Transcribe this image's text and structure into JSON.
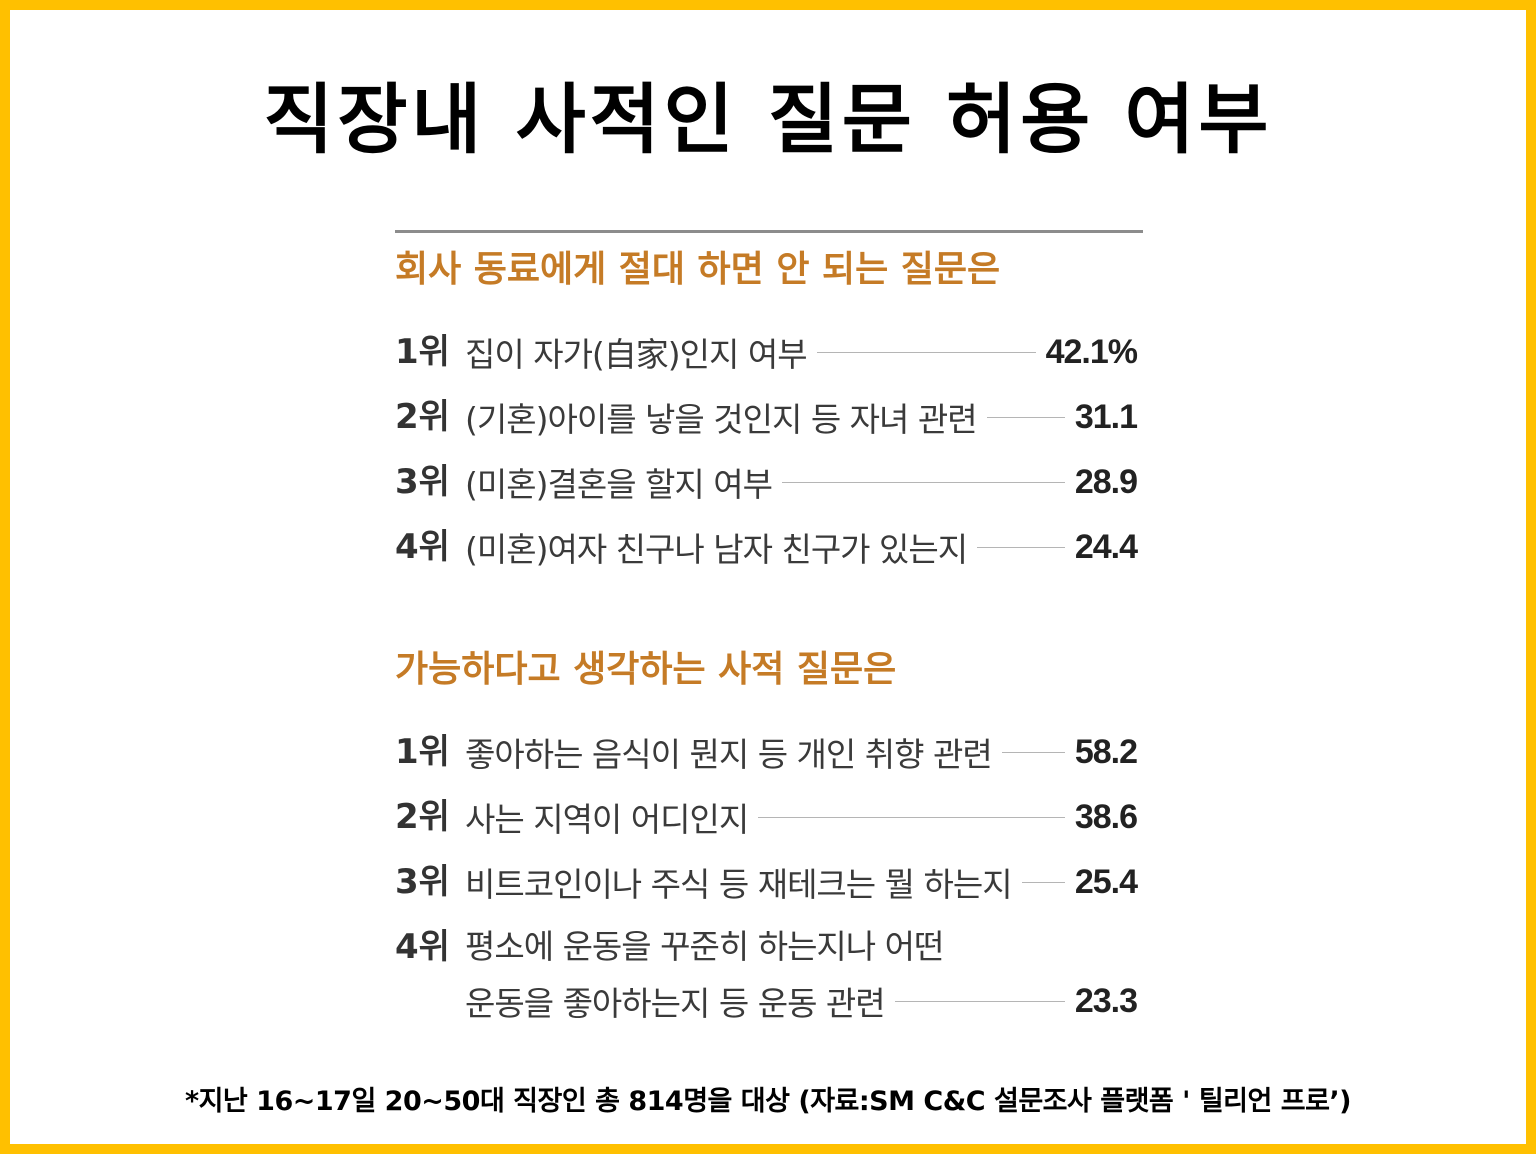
{
  "title": "직장내 사적인 질문 허용 여부",
  "section1": {
    "heading": "회사 동료에게 절대 하면 안 되는 질문은",
    "items": [
      {
        "rank": "1위",
        "label": "집이 자가(自家)인지 여부",
        "value": "42.1%"
      },
      {
        "rank": "2위",
        "label": "(기혼)아이를 낳을 것인지 등 자녀 관련",
        "value": "31.1"
      },
      {
        "rank": "3위",
        "label": "(미혼)결혼을 할지 여부",
        "value": "28.9"
      },
      {
        "rank": "4위",
        "label": "(미혼)여자 친구나 남자 친구가 있는지",
        "value": "24.4"
      }
    ]
  },
  "section2": {
    "heading": "가능하다고 생각하는 사적 질문은",
    "items": [
      {
        "rank": "1위",
        "label": "좋아하는 음식이 뭔지 등 개인 취향 관련",
        "value": "58.2"
      },
      {
        "rank": "2위",
        "label": "사는 지역이 어디인지",
        "value": "38.6"
      },
      {
        "rank": "3위",
        "label": "비트코인이나 주식 등 재테크는 뭘 하는지",
        "value": "25.4"
      },
      {
        "rank": "4위",
        "label_line1": "평소에 운동을 꾸준히 하는지나 어떤",
        "label_line2": "운동을 좋아하는지 등 운동 관련",
        "value": "23.3"
      }
    ]
  },
  "footnote": "*지난 16~17일 20~50대 직장인 총 814명을 대상 (자료:SM C&C 설문조사 플랫폼 ' 틸리언 프로’)"
}
